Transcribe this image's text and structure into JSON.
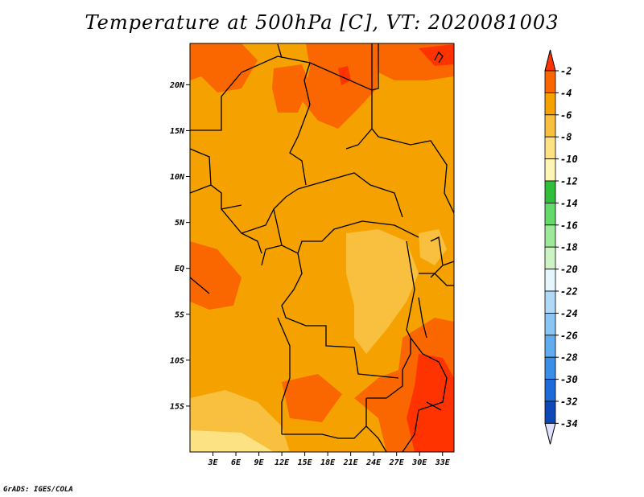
{
  "title": "Temperature at 500hPa [C], VT: 2020081003",
  "credit": "GrADS: IGES/COLA",
  "map": {
    "lon_range": [
      0,
      34.5
    ],
    "lat_range": [
      -20,
      24.5
    ],
    "lat_ticks": [
      "20N",
      "15N",
      "10N",
      "5N",
      "EQ",
      "5S",
      "10S",
      "15S"
    ],
    "lon_ticks": [
      "3E",
      "6E",
      "9E",
      "12E",
      "15E",
      "18E",
      "21E",
      "24E",
      "27E",
      "30E",
      "33E"
    ],
    "base_color": "#f5a200"
  },
  "colorbar": {
    "labels": [
      "-2",
      "-4",
      "-6",
      "-8",
      "-10",
      "-12",
      "-14",
      "-16",
      "-18",
      "-20",
      "-22",
      "-24",
      "-26",
      "-28",
      "-30",
      "-32",
      "-34"
    ],
    "colors": [
      "#ff3300",
      "#fa6600",
      "#f5a200",
      "#f9bf3e",
      "#fde283",
      "#fdf5b4",
      "#2fbf3a",
      "#66d96b",
      "#9ee89a",
      "#cdf2c4",
      "#e5f7fc",
      "#b0d8f7",
      "#8ac5f5",
      "#61acef",
      "#3b8ee8",
      "#1e6ad9",
      "#0d47b8",
      "#0a1f80"
    ],
    "top_color": "#ff3300",
    "bottom_color": "#e0e0ff"
  }
}
